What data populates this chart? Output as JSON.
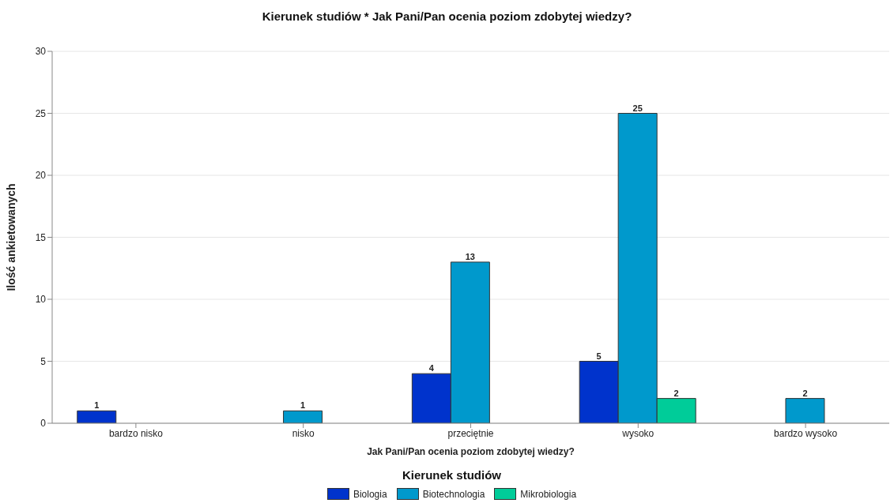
{
  "chart_data": {
    "type": "bar",
    "title": "Kierunek studiów * Jak Pani/Pan ocenia poziom zdobytej wiedzy?",
    "xlabel": "Jak Pani/Pan ocenia poziom zdobytej wiedzy?",
    "ylabel": "Ilość ankietowanych",
    "legend_title": "Kierunek studiów",
    "categories": [
      "bardzo nisko",
      "nisko",
      "przeciętnie",
      "wysoko",
      "bardzo wysoko"
    ],
    "series": [
      {
        "name": "Biologia",
        "color": "#0033cc",
        "values": [
          1,
          null,
          4,
          5,
          null
        ]
      },
      {
        "name": "Biotechnologia",
        "color": "#0099cc",
        "values": [
          null,
          1,
          13,
          25,
          2
        ]
      },
      {
        "name": "Mikrobiologia",
        "color": "#00cc99",
        "values": [
          null,
          null,
          null,
          2,
          null
        ]
      }
    ],
    "ylim": [
      0,
      30
    ],
    "yticks": [
      0,
      5,
      10,
      15,
      20,
      25,
      30
    ],
    "grid": "y",
    "legend": "bottom",
    "data_labels": true
  }
}
